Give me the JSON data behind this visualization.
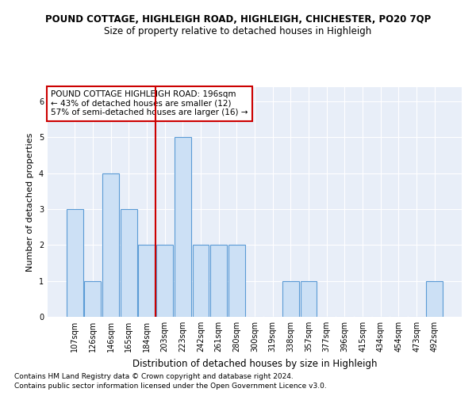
{
  "title": "POUND COTTAGE, HIGHLEIGH ROAD, HIGHLEIGH, CHICHESTER, PO20 7QP",
  "subtitle": "Size of property relative to detached houses in Highleigh",
  "xlabel": "Distribution of detached houses by size in Highleigh",
  "ylabel": "Number of detached properties",
  "categories": [
    "107sqm",
    "126sqm",
    "146sqm",
    "165sqm",
    "184sqm",
    "203sqm",
    "223sqm",
    "242sqm",
    "261sqm",
    "280sqm",
    "300sqm",
    "319sqm",
    "338sqm",
    "357sqm",
    "377sqm",
    "396sqm",
    "415sqm",
    "434sqm",
    "454sqm",
    "473sqm",
    "492sqm"
  ],
  "values": [
    3,
    1,
    4,
    3,
    2,
    2,
    5,
    2,
    2,
    2,
    0,
    0,
    1,
    1,
    0,
    0,
    0,
    0,
    0,
    0,
    1
  ],
  "bar_color": "#cce0f5",
  "bar_edge_color": "#5b9bd5",
  "vline_x_index": 4.5,
  "vline_color": "#cc0000",
  "annotation_text": "POUND COTTAGE HIGHLEIGH ROAD: 196sqm\n← 43% of detached houses are smaller (12)\n57% of semi-detached houses are larger (16) →",
  "annotation_box_color": "white",
  "annotation_box_edge_color": "#cc0000",
  "ylim": [
    0,
    6.4
  ],
  "yticks": [
    0,
    1,
    2,
    3,
    4,
    5,
    6
  ],
  "background_color": "#e8eef8",
  "footer_line1": "Contains HM Land Registry data © Crown copyright and database right 2024.",
  "footer_line2": "Contains public sector information licensed under the Open Government Licence v3.0.",
  "title_fontsize": 8.5,
  "subtitle_fontsize": 8.5,
  "xlabel_fontsize": 8.5,
  "ylabel_fontsize": 8,
  "tick_fontsize": 7,
  "annotation_fontsize": 7.5,
  "footer_fontsize": 6.5
}
